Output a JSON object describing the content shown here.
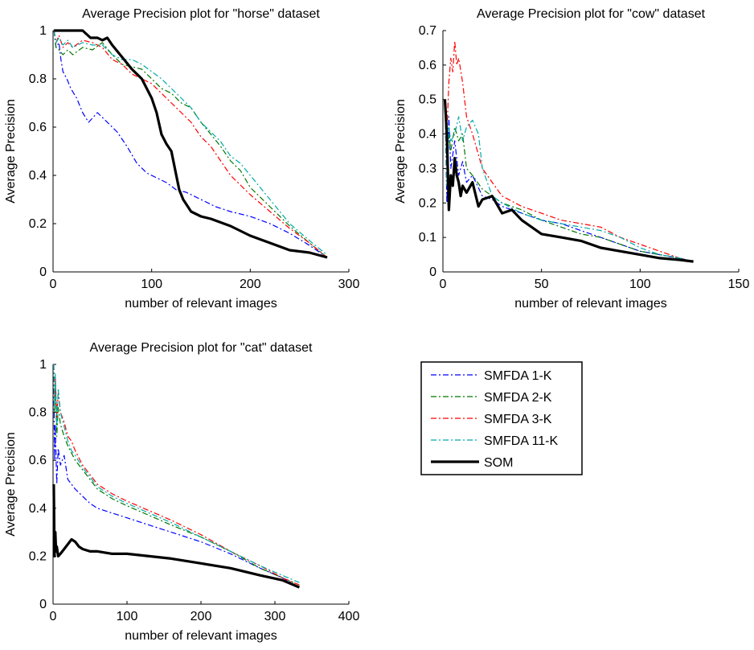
{
  "chart_data": [
    {
      "type": "line",
      "title": "Average Precision plot for \"horse\" dataset",
      "xlabel": "number of relevant images",
      "ylabel": "Average Precision",
      "xlim": [
        0,
        300
      ],
      "ylim": [
        0,
        1
      ],
      "xticks": [
        "0",
        "100",
        "200",
        "300"
      ],
      "yticks": [
        "0",
        "0.2",
        "0.4",
        "0.6",
        "0.8",
        "1"
      ],
      "series": [
        {
          "name": "SMFDA 1-K",
          "color": "#0000ff",
          "style": "dashdot",
          "x": [
            1,
            3,
            6,
            8,
            10,
            14,
            18,
            24,
            30,
            36,
            45,
            55,
            65,
            75,
            85,
            95,
            105,
            115,
            125,
            135,
            150,
            165,
            180,
            200,
            220,
            240,
            260,
            278
          ],
          "y": [
            1.0,
            0.93,
            0.95,
            0.88,
            0.83,
            0.8,
            0.76,
            0.72,
            0.66,
            0.62,
            0.66,
            0.62,
            0.58,
            0.52,
            0.45,
            0.41,
            0.39,
            0.37,
            0.34,
            0.33,
            0.3,
            0.27,
            0.25,
            0.23,
            0.2,
            0.16,
            0.11,
            0.06
          ]
        },
        {
          "name": "SMFDA 2-K",
          "color": "#007700",
          "style": "dashdot",
          "x": [
            1,
            3,
            6,
            10,
            15,
            20,
            30,
            40,
            50,
            60,
            70,
            80,
            90,
            100,
            110,
            120,
            130,
            140,
            150,
            160,
            170,
            180,
            190,
            200,
            220,
            240,
            260,
            278
          ],
          "y": [
            1.0,
            0.93,
            0.92,
            0.9,
            0.92,
            0.9,
            0.93,
            0.92,
            0.95,
            0.9,
            0.86,
            0.85,
            0.84,
            0.8,
            0.76,
            0.74,
            0.7,
            0.68,
            0.62,
            0.57,
            0.52,
            0.46,
            0.42,
            0.35,
            0.27,
            0.19,
            0.12,
            0.06
          ]
        },
        {
          "name": "SMFDA 3-K",
          "color": "#ff0000",
          "style": "dashdot",
          "x": [
            1,
            3,
            6,
            10,
            15,
            20,
            30,
            40,
            50,
            60,
            70,
            80,
            90,
            100,
            110,
            120,
            130,
            140,
            150,
            160,
            170,
            180,
            190,
            200,
            220,
            240,
            260,
            278
          ],
          "y": [
            1.0,
            0.95,
            0.98,
            0.93,
            0.95,
            0.93,
            0.96,
            0.95,
            0.93,
            0.88,
            0.86,
            0.82,
            0.8,
            0.78,
            0.74,
            0.7,
            0.66,
            0.62,
            0.56,
            0.52,
            0.46,
            0.4,
            0.36,
            0.32,
            0.25,
            0.18,
            0.12,
            0.06
          ]
        },
        {
          "name": "SMFDA 11-K",
          "color": "#00aaaa",
          "style": "dashdot",
          "x": [
            1,
            3,
            6,
            10,
            15,
            20,
            30,
            40,
            50,
            60,
            70,
            80,
            90,
            100,
            110,
            120,
            130,
            140,
            150,
            160,
            170,
            180,
            190,
            200,
            220,
            240,
            260,
            278
          ],
          "y": [
            1.0,
            0.95,
            0.97,
            0.94,
            0.96,
            0.93,
            0.95,
            0.94,
            0.94,
            0.9,
            0.88,
            0.88,
            0.86,
            0.83,
            0.8,
            0.76,
            0.72,
            0.68,
            0.62,
            0.58,
            0.54,
            0.48,
            0.45,
            0.4,
            0.3,
            0.2,
            0.13,
            0.07
          ]
        },
        {
          "name": "SOM",
          "color": "#000000",
          "style": "solid",
          "x": [
            1,
            10,
            20,
            30,
            38,
            45,
            50,
            55,
            60,
            70,
            80,
            90,
            100,
            105,
            110,
            115,
            120,
            125,
            128,
            132,
            140,
            150,
            160,
            180,
            200,
            220,
            240,
            260,
            278
          ],
          "y": [
            1.0,
            1.0,
            1.0,
            1.0,
            0.97,
            0.97,
            0.96,
            0.97,
            0.94,
            0.89,
            0.84,
            0.8,
            0.72,
            0.66,
            0.57,
            0.53,
            0.5,
            0.4,
            0.34,
            0.3,
            0.25,
            0.23,
            0.22,
            0.19,
            0.15,
            0.12,
            0.09,
            0.08,
            0.06
          ]
        }
      ]
    },
    {
      "type": "line",
      "title": "Average Precision plot for \"cow\" dataset",
      "xlabel": "number of relevant images",
      "ylabel": "Average Precision",
      "xlim": [
        0,
        150
      ],
      "ylim": [
        0,
        0.7
      ],
      "xticks": [
        "0",
        "50",
        "100",
        "150"
      ],
      "yticks": [
        "0",
        "0.1",
        "0.2",
        "0.3",
        "0.4",
        "0.5",
        "0.6",
        "0.7"
      ],
      "series": [
        {
          "name": "SMFDA 1-K",
          "color": "#0000ff",
          "style": "dashdot",
          "x": [
            1,
            2,
            3,
            4,
            6,
            8,
            10,
            12,
            15,
            20,
            25,
            30,
            40,
            50,
            60,
            70,
            80,
            90,
            100,
            110,
            120,
            127
          ],
          "y": [
            0.5,
            0.2,
            0.45,
            0.3,
            0.38,
            0.28,
            0.32,
            0.26,
            0.28,
            0.22,
            0.21,
            0.19,
            0.17,
            0.15,
            0.14,
            0.12,
            0.1,
            0.08,
            0.06,
            0.05,
            0.04,
            0.03
          ]
        },
        {
          "name": "SMFDA 2-K",
          "color": "#007700",
          "style": "dashdot",
          "x": [
            1,
            2,
            3,
            4,
            6,
            8,
            10,
            12,
            15,
            20,
            25,
            30,
            40,
            50,
            60,
            70,
            80,
            90,
            100,
            110,
            120,
            127
          ],
          "y": [
            0.5,
            0.25,
            0.4,
            0.35,
            0.42,
            0.38,
            0.4,
            0.3,
            0.28,
            0.24,
            0.22,
            0.2,
            0.18,
            0.15,
            0.13,
            0.11,
            0.1,
            0.08,
            0.06,
            0.05,
            0.04,
            0.03
          ]
        },
        {
          "name": "SMFDA 3-K",
          "color": "#ff0000",
          "style": "dashdot",
          "x": [
            1,
            2,
            3,
            4,
            5,
            6,
            7,
            8,
            10,
            12,
            15,
            20,
            25,
            30,
            40,
            50,
            60,
            70,
            80,
            90,
            100,
            110,
            120,
            127
          ],
          "y": [
            0.5,
            0.4,
            0.55,
            0.62,
            0.58,
            0.67,
            0.6,
            0.62,
            0.55,
            0.45,
            0.4,
            0.3,
            0.26,
            0.22,
            0.19,
            0.17,
            0.15,
            0.14,
            0.13,
            0.1,
            0.08,
            0.06,
            0.04,
            0.03
          ]
        },
        {
          "name": "SMFDA 11-K",
          "color": "#00aaaa",
          "style": "dashdot",
          "x": [
            1,
            2,
            3,
            4,
            6,
            8,
            10,
            12,
            15,
            18,
            20,
            25,
            30,
            40,
            50,
            60,
            70,
            80,
            90,
            100,
            110,
            120,
            127
          ],
          "y": [
            0.5,
            0.25,
            0.42,
            0.38,
            0.4,
            0.45,
            0.38,
            0.42,
            0.44,
            0.4,
            0.3,
            0.22,
            0.2,
            0.17,
            0.15,
            0.14,
            0.13,
            0.12,
            0.1,
            0.07,
            0.05,
            0.04,
            0.03
          ]
        },
        {
          "name": "SOM",
          "color": "#000000",
          "style": "solid",
          "x": [
            1,
            2,
            3,
            4,
            5,
            6,
            7,
            8,
            9,
            10,
            12,
            15,
            18,
            20,
            25,
            30,
            35,
            40,
            50,
            60,
            70,
            80,
            90,
            100,
            110,
            120,
            127
          ],
          "y": [
            0.5,
            0.4,
            0.18,
            0.28,
            0.25,
            0.33,
            0.28,
            0.26,
            0.22,
            0.25,
            0.23,
            0.26,
            0.19,
            0.21,
            0.22,
            0.17,
            0.18,
            0.15,
            0.11,
            0.1,
            0.09,
            0.07,
            0.06,
            0.05,
            0.04,
            0.035,
            0.03
          ]
        }
      ]
    },
    {
      "type": "line",
      "title": "Average Precision plot for \"cat\" dataset",
      "xlabel": "number of relevant images",
      "ylabel": "Average Precision",
      "xlim": [
        0,
        400
      ],
      "ylim": [
        0,
        1
      ],
      "xticks": [
        "0",
        "100",
        "200",
        "300",
        "400"
      ],
      "yticks": [
        "0",
        "0.2",
        "0.4",
        "0.6",
        "0.8",
        "1"
      ],
      "series": [
        {
          "name": "SMFDA 1-K",
          "color": "#0000ff",
          "style": "dashdot",
          "x": [
            1,
            2,
            3,
            5,
            7,
            10,
            15,
            20,
            25,
            30,
            40,
            50,
            60,
            80,
            100,
            130,
            160,
            200,
            240,
            280,
            310,
            333
          ],
          "y": [
            1.0,
            0.6,
            0.75,
            0.5,
            0.65,
            0.58,
            0.62,
            0.52,
            0.5,
            0.48,
            0.45,
            0.42,
            0.4,
            0.38,
            0.36,
            0.33,
            0.3,
            0.26,
            0.21,
            0.15,
            0.11,
            0.07
          ]
        },
        {
          "name": "SMFDA 2-K",
          "color": "#007700",
          "style": "dashdot",
          "x": [
            1,
            2,
            3,
            5,
            7,
            10,
            15,
            20,
            25,
            30,
            40,
            50,
            60,
            80,
            100,
            130,
            160,
            200,
            240,
            280,
            310,
            333
          ],
          "y": [
            1.0,
            0.8,
            0.92,
            0.7,
            0.82,
            0.75,
            0.7,
            0.66,
            0.63,
            0.6,
            0.56,
            0.52,
            0.48,
            0.44,
            0.41,
            0.37,
            0.33,
            0.28,
            0.22,
            0.15,
            0.11,
            0.08
          ]
        },
        {
          "name": "SMFDA 3-K",
          "color": "#ff0000",
          "style": "dashdot",
          "x": [
            1,
            2,
            3,
            5,
            7,
            10,
            15,
            20,
            25,
            30,
            40,
            50,
            60,
            80,
            100,
            130,
            160,
            200,
            240,
            280,
            310,
            333
          ],
          "y": [
            1.0,
            0.85,
            0.95,
            0.78,
            0.88,
            0.8,
            0.76,
            0.7,
            0.68,
            0.64,
            0.58,
            0.54,
            0.5,
            0.46,
            0.43,
            0.39,
            0.35,
            0.29,
            0.22,
            0.16,
            0.11,
            0.08
          ]
        },
        {
          "name": "SMFDA 11-K",
          "color": "#00aaaa",
          "style": "dashdot",
          "x": [
            1,
            2,
            3,
            5,
            7,
            10,
            15,
            20,
            25,
            30,
            40,
            50,
            60,
            80,
            100,
            130,
            160,
            200,
            240,
            280,
            310,
            333
          ],
          "y": [
            1.0,
            0.82,
            0.96,
            0.74,
            0.9,
            0.8,
            0.74,
            0.68,
            0.64,
            0.62,
            0.57,
            0.53,
            0.49,
            0.45,
            0.42,
            0.38,
            0.34,
            0.28,
            0.22,
            0.16,
            0.12,
            0.09
          ]
        },
        {
          "name": "SOM",
          "color": "#000000",
          "style": "solid",
          "x": [
            1,
            2,
            3,
            4,
            5,
            7,
            10,
            15,
            20,
            25,
            30,
            35,
            40,
            50,
            60,
            80,
            100,
            130,
            160,
            200,
            240,
            280,
            310,
            333
          ],
          "y": [
            0.5,
            0.2,
            0.3,
            0.22,
            0.24,
            0.2,
            0.21,
            0.23,
            0.25,
            0.27,
            0.26,
            0.24,
            0.23,
            0.22,
            0.22,
            0.21,
            0.21,
            0.2,
            0.19,
            0.17,
            0.15,
            0.12,
            0.1,
            0.07
          ]
        }
      ]
    }
  ],
  "legend": {
    "entries": [
      {
        "label": "SMFDA 1-K",
        "color": "#0000ff",
        "style": "dashdot"
      },
      {
        "label": "SMFDA 2-K",
        "color": "#007700",
        "style": "dashdot"
      },
      {
        "label": "SMFDA 3-K",
        "color": "#ff0000",
        "style": "dashdot"
      },
      {
        "label": "SMFDA 11-K",
        "color": "#00aaaa",
        "style": "dashdot"
      },
      {
        "label": "SOM",
        "color": "#000000",
        "style": "solid"
      }
    ]
  }
}
